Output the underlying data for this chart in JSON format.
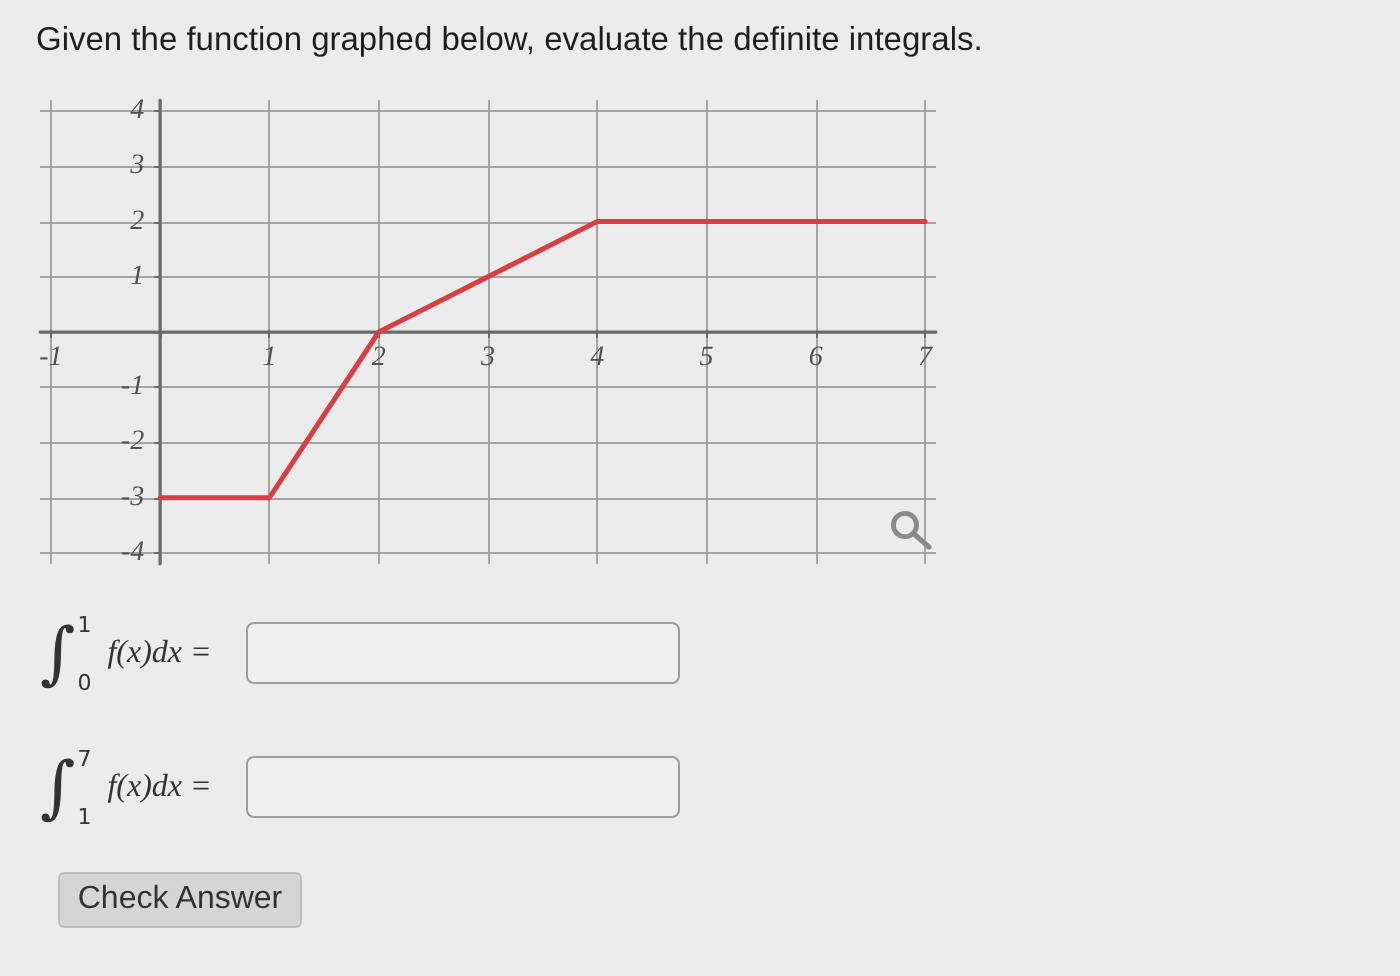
{
  "chart_data": {
    "type": "line",
    "title": "Given the function graphed below, evaluate the definite integrals.",
    "annotations": [
      "∫$^{1}$$_{0}$ f(x)dx =",
      "∫$^{7}$$_{1}$ f(x)dx =",
      "Check Answer"
    ],
    "x": [
      0,
      1,
      2,
      4,
      7
    ],
    "values": [
      -3,
      -3,
      0,
      2,
      2
    ],
    "color": "#d64045",
    "xlim": [
      -1.1,
      7.1
    ],
    "ylim": [
      -4.2,
      4.2
    ],
    "xticks": [
      -1,
      {
        "value": 0,
        "label": null
      },
      1,
      2,
      3,
      4,
      5,
      6,
      7
    ],
    "yticks": [
      -4,
      -3,
      -2,
      -1,
      {
        "value": 0,
        "label": null
      },
      1,
      2,
      3,
      4
    ],
    "grid": true,
    "marker": "none",
    "line_style": "solid"
  }
}
